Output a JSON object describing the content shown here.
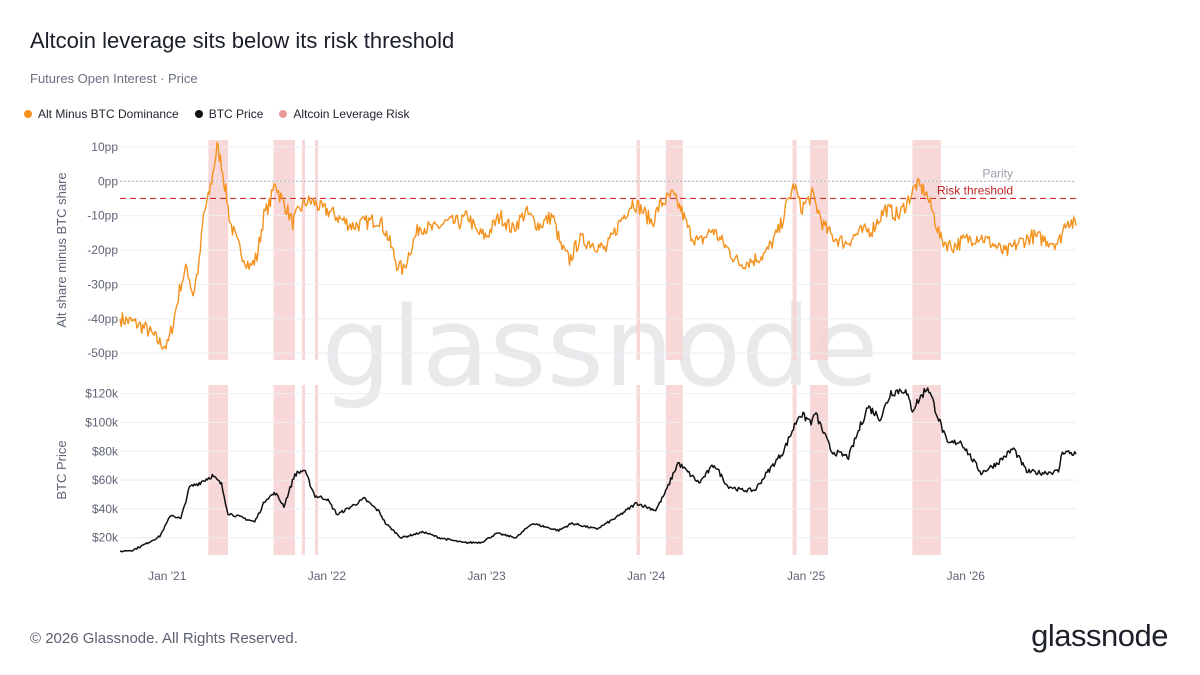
{
  "header": {
    "title": "Altcoin leverage sits below its risk threshold",
    "subtitle": "Futures Open Interest · Price"
  },
  "legend": {
    "items": [
      {
        "label": "Alt Minus BTC Dominance",
        "color": "#f5921e"
      },
      {
        "label": "BTC Price",
        "color": "#111111"
      },
      {
        "label": "Altcoin Leverage Risk",
        "color": "#e89a9a"
      }
    ]
  },
  "watermark": "glassnode",
  "footer": {
    "copyright": "© 2026 Glassnode. All Rights Reserved.",
    "logo": "glassnode"
  },
  "chart_data": {
    "type": "line",
    "x_ticks": [
      "Jan '21",
      "Jan '22",
      "Jan '23",
      "Jan '24",
      "Jan '25",
      "Jan '26"
    ],
    "x_range": [
      "2020-09-15",
      "2026-09-10"
    ],
    "risk_periods": [
      [
        "2021-04-05",
        "2021-05-20"
      ],
      [
        "2021-09-01",
        "2021-10-20"
      ],
      [
        "2021-11-05",
        "2021-11-12"
      ],
      [
        "2021-12-05",
        "2021-12-12"
      ],
      [
        "2023-12-10",
        "2023-12-18"
      ],
      [
        "2024-02-15",
        "2024-03-25"
      ],
      [
        "2024-12-01",
        "2024-12-10"
      ],
      [
        "2025-01-10",
        "2025-02-20"
      ],
      [
        "2025-09-01",
        "2025-11-05"
      ]
    ],
    "panels": [
      {
        "series_name": "Alt Minus BTC Dominance",
        "color": "#f5921e",
        "ylabel": "Alt share minus BTC share",
        "y_ticks": [
          "10pp",
          "0pp",
          "-10pp",
          "-20pp",
          "-30pp",
          "-40pp",
          "-50pp"
        ],
        "ylim": [
          -52,
          12
        ],
        "reference_lines": [
          {
            "label": "Parity",
            "value": 0,
            "color": "#b0b4be"
          },
          {
            "label": "Risk threshold",
            "value": -5,
            "color": "#d12d2d"
          }
        ],
        "points": [
          [
            "2020-09-15",
            -40
          ],
          [
            "2020-10-15",
            -41
          ],
          [
            "2020-11-15",
            -43
          ],
          [
            "2020-12-15",
            -47
          ],
          [
            "2021-01-01",
            -48
          ],
          [
            "2021-01-15",
            -41
          ],
          [
            "2021-02-01",
            -30
          ],
          [
            "2021-02-15",
            -25
          ],
          [
            "2021-03-01",
            -33
          ],
          [
            "2021-03-15",
            -24
          ],
          [
            "2021-03-25",
            -10
          ],
          [
            "2021-04-05",
            -5
          ],
          [
            "2021-04-15",
            2
          ],
          [
            "2021-04-25",
            10
          ],
          [
            "2021-05-05",
            5
          ],
          [
            "2021-05-15",
            -3
          ],
          [
            "2021-05-25",
            -12
          ],
          [
            "2021-06-10",
            -18
          ],
          [
            "2021-06-25",
            -22
          ],
          [
            "2021-07-10",
            -25
          ],
          [
            "2021-07-25",
            -22
          ],
          [
            "2021-08-10",
            -10
          ],
          [
            "2021-08-25",
            -6
          ],
          [
            "2021-09-05",
            0
          ],
          [
            "2021-09-15",
            -4
          ],
          [
            "2021-10-01",
            -8
          ],
          [
            "2021-10-15",
            -12
          ],
          [
            "2021-11-01",
            -8
          ],
          [
            "2021-11-15",
            -6
          ],
          [
            "2021-12-01",
            -6
          ],
          [
            "2021-12-20",
            -8
          ],
          [
            "2022-01-10",
            -9
          ],
          [
            "2022-02-01",
            -11
          ],
          [
            "2022-03-01",
            -13
          ],
          [
            "2022-04-01",
            -12
          ],
          [
            "2022-05-01",
            -11
          ],
          [
            "2022-05-20",
            -16
          ],
          [
            "2022-06-10",
            -24
          ],
          [
            "2022-06-25",
            -26
          ],
          [
            "2022-07-10",
            -20
          ],
          [
            "2022-08-01",
            -13
          ],
          [
            "2022-09-01",
            -14
          ],
          [
            "2022-10-01",
            -12
          ],
          [
            "2022-11-01",
            -12
          ],
          [
            "2022-11-20",
            -10
          ],
          [
            "2022-12-10",
            -15
          ],
          [
            "2023-01-01",
            -16
          ],
          [
            "2023-02-01",
            -10
          ],
          [
            "2023-03-01",
            -14
          ],
          [
            "2023-04-01",
            -9
          ],
          [
            "2023-05-01",
            -13
          ],
          [
            "2023-06-01",
            -10
          ],
          [
            "2023-06-20",
            -19
          ],
          [
            "2023-07-10",
            -23
          ],
          [
            "2023-08-01",
            -17
          ],
          [
            "2023-09-01",
            -18
          ],
          [
            "2023-10-01",
            -20
          ],
          [
            "2023-11-01",
            -12
          ],
          [
            "2023-12-01",
            -6
          ],
          [
            "2023-12-20",
            -8
          ],
          [
            "2024-01-15",
            -12
          ],
          [
            "2024-02-01",
            -7
          ],
          [
            "2024-03-01",
            -4
          ],
          [
            "2024-03-20",
            -8
          ],
          [
            "2024-04-10",
            -15
          ],
          [
            "2024-05-01",
            -18
          ],
          [
            "2024-06-01",
            -14
          ],
          [
            "2024-07-01",
            -19
          ],
          [
            "2024-08-01",
            -24
          ],
          [
            "2024-09-01",
            -23
          ],
          [
            "2024-10-01",
            -21
          ],
          [
            "2024-11-01",
            -14
          ],
          [
            "2024-11-20",
            -6
          ],
          [
            "2024-12-05",
            -1
          ],
          [
            "2024-12-20",
            -8
          ],
          [
            "2025-01-15",
            -4
          ],
          [
            "2025-02-10",
            -13
          ],
          [
            "2025-03-01",
            -16
          ],
          [
            "2025-04-01",
            -18
          ],
          [
            "2025-05-01",
            -15
          ],
          [
            "2025-06-01",
            -14
          ],
          [
            "2025-07-01",
            -8
          ],
          [
            "2025-08-01",
            -10
          ],
          [
            "2025-08-20",
            -6
          ],
          [
            "2025-09-10",
            -1
          ],
          [
            "2025-10-01",
            -3
          ],
          [
            "2025-10-20",
            -10
          ],
          [
            "2025-11-05",
            -17
          ],
          [
            "2025-12-01",
            -19
          ],
          [
            "2026-01-01",
            -17
          ],
          [
            "2026-02-01",
            -16
          ],
          [
            "2026-03-01",
            -18
          ],
          [
            "2026-04-01",
            -21
          ],
          [
            "2026-05-01",
            -18
          ],
          [
            "2026-06-01",
            -16
          ],
          [
            "2026-07-01",
            -17
          ],
          [
            "2026-08-01",
            -18
          ],
          [
            "2026-08-20",
            -11
          ],
          [
            "2026-09-10",
            -13
          ]
        ]
      },
      {
        "series_name": "BTC Price",
        "color": "#111111",
        "ylabel": "BTC Price",
        "y_ticks": [
          "$120k",
          "$100k",
          "$80k",
          "$60k",
          "$40k",
          "$20k"
        ],
        "ylim": [
          8,
          126
        ],
        "y_tick_values": [
          120,
          100,
          80,
          60,
          40,
          20
        ],
        "points": [
          [
            "2020-09-15",
            10.5
          ],
          [
            "2020-10-15",
            11.5
          ],
          [
            "2020-11-15",
            16
          ],
          [
            "2020-12-15",
            21
          ],
          [
            "2021-01-10",
            36
          ],
          [
            "2021-02-01",
            33
          ],
          [
            "2021-02-21",
            55
          ],
          [
            "2021-03-15",
            58
          ],
          [
            "2021-04-14",
            63
          ],
          [
            "2021-05-05",
            57
          ],
          [
            "2021-05-20",
            37
          ],
          [
            "2021-06-20",
            34
          ],
          [
            "2021-07-20",
            31
          ],
          [
            "2021-08-15",
            47
          ],
          [
            "2021-09-05",
            51
          ],
          [
            "2021-09-25",
            42
          ],
          [
            "2021-10-20",
            64
          ],
          [
            "2021-11-10",
            67
          ],
          [
            "2021-12-05",
            49
          ],
          [
            "2022-01-01",
            47
          ],
          [
            "2022-01-25",
            36
          ],
          [
            "2022-03-28",
            47
          ],
          [
            "2022-05-01",
            38
          ],
          [
            "2022-05-15",
            30
          ],
          [
            "2022-06-20",
            20
          ],
          [
            "2022-08-10",
            24
          ],
          [
            "2022-09-15",
            20
          ],
          [
            "2022-11-10",
            16.5
          ],
          [
            "2022-12-20",
            16.8
          ],
          [
            "2023-01-25",
            23
          ],
          [
            "2023-03-10",
            20
          ],
          [
            "2023-04-15",
            30
          ],
          [
            "2023-06-15",
            25
          ],
          [
            "2023-07-15",
            30
          ],
          [
            "2023-09-10",
            26
          ],
          [
            "2023-10-25",
            34
          ],
          [
            "2023-12-10",
            44
          ],
          [
            "2024-01-23",
            39
          ],
          [
            "2024-02-15",
            52
          ],
          [
            "2024-03-14",
            72
          ],
          [
            "2024-05-01",
            58
          ],
          [
            "2024-06-05",
            71
          ],
          [
            "2024-07-05",
            56
          ],
          [
            "2024-08-05",
            53
          ],
          [
            "2024-09-06",
            53
          ],
          [
            "2024-10-01",
            64
          ],
          [
            "2024-11-10",
            80
          ],
          [
            "2024-12-17",
            106
          ],
          [
            "2025-01-15",
            100
          ],
          [
            "2025-01-21",
            107
          ],
          [
            "2025-02-28",
            80
          ],
          [
            "2025-04-08",
            76
          ],
          [
            "2025-05-22",
            111
          ],
          [
            "2025-06-20",
            103
          ],
          [
            "2025-07-14",
            121
          ],
          [
            "2025-08-14",
            123
          ],
          [
            "2025-09-01",
            109
          ],
          [
            "2025-10-06",
            125
          ],
          [
            "2025-11-20",
            85
          ],
          [
            "2025-12-20",
            87
          ],
          [
            "2026-02-05",
            65
          ],
          [
            "2026-03-15",
            72
          ],
          [
            "2026-04-20",
            82
          ],
          [
            "2026-05-20",
            66
          ],
          [
            "2026-06-20",
            65
          ],
          [
            "2026-08-01",
            66
          ],
          [
            "2026-08-10",
            80
          ],
          [
            "2026-09-10",
            78
          ]
        ]
      }
    ]
  }
}
